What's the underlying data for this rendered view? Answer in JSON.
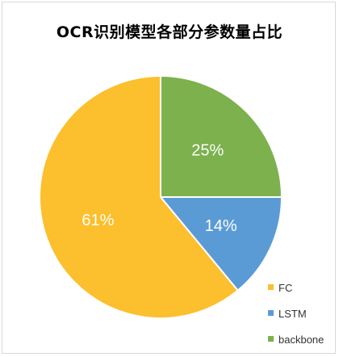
{
  "chart_data": {
    "type": "pie",
    "title": "OCR识别模型各部分参数量占比",
    "slices": [
      {
        "label": "backbone",
        "value": 25,
        "display": "25%",
        "color": "#7cb14d"
      },
      {
        "label": "LSTM",
        "value": 14,
        "display": "14%",
        "color": "#5b9bd5"
      },
      {
        "label": "FC",
        "value": 61,
        "display": "61%",
        "color": "#fcbf2d"
      }
    ],
    "legend_order": [
      "FC",
      "LSTM",
      "backbone"
    ],
    "legend_position": "bottom-right",
    "start_angle": "12 o'clock",
    "direction": "clockwise",
    "label_color": "#ffffff"
  }
}
